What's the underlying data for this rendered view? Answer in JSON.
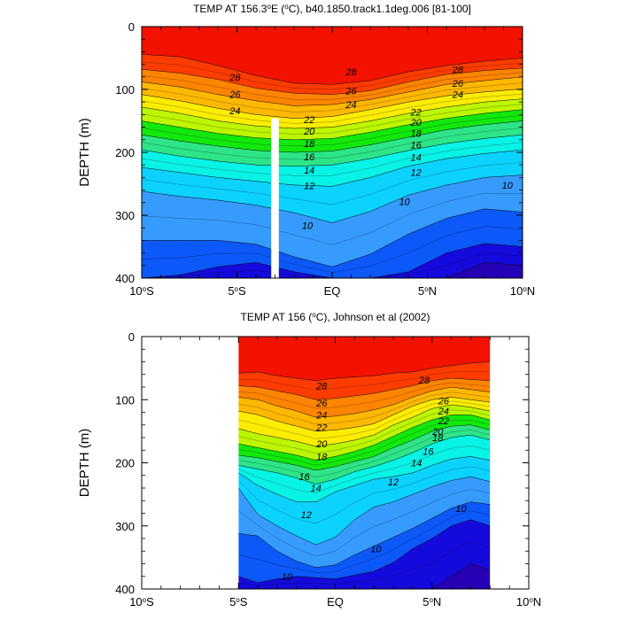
{
  "chart_data": [
    {
      "type": "contour",
      "title": "TEMP AT 156.3°E (°C), b40.1850.track1.1deg.006 [81-100]",
      "title_prefix": "TEMP AT 156.3",
      "title_sup": "o",
      "title_suffix": "E (",
      "title_sup2": "o",
      "title_end": "C), b40.1850.track1.1deg.006 [81-100]",
      "ylabel": "DEPTH (m)",
      "xlim": [
        -10,
        10
      ],
      "ylim": [
        0,
        400
      ],
      "data_extent": [
        -10,
        10
      ],
      "masked_column": [
        -3.2,
        -2.8,
        146
      ],
      "x_ticks": [
        {
          "v": -10,
          "num": "10",
          "sup": "o",
          "hem": "S"
        },
        {
          "v": -5,
          "num": "5",
          "sup": "o",
          "hem": "S"
        },
        {
          "v": 0,
          "num": "EQ",
          "sup": "",
          "hem": ""
        },
        {
          "v": 5,
          "num": "5",
          "sup": "o",
          "hem": "N"
        },
        {
          "v": 10,
          "num": "10",
          "sup": "o",
          "hem": "N"
        }
      ],
      "y_ticks": [
        0,
        100,
        200,
        300,
        400
      ],
      "x_profile": [
        -10,
        -8,
        -6,
        -4,
        -2,
        0,
        2,
        4,
        6,
        8,
        10
      ],
      "isotherms": [
        {
          "t": 29,
          "d": [
            0,
            0,
            0,
            0,
            0,
            0,
            0,
            0,
            0,
            0,
            0
          ]
        },
        {
          "t": 28,
          "d": [
            44,
            48,
            62,
            78,
            90,
            92,
            86,
            72,
            62,
            55,
            50
          ]
        },
        {
          "t": 26,
          "d": [
            68,
            74,
            84,
            98,
            106,
            108,
            102,
            88,
            76,
            70,
            66
          ]
        },
        {
          "t": 24,
          "d": [
            88,
            96,
            108,
            118,
            126,
            124,
            116,
            104,
            92,
            86,
            80
          ]
        },
        {
          "t": 22,
          "d": [
            108,
            118,
            130,
            140,
            146,
            143,
            132,
            120,
            110,
            104,
            99
          ]
        },
        {
          "t": 20,
          "d": [
            128,
            138,
            150,
            158,
            162,
            160,
            150,
            138,
            128,
            120,
            115
          ]
        },
        {
          "t": 18,
          "d": [
            150,
            160,
            170,
            177,
            180,
            178,
            168,
            156,
            146,
            138,
            132
          ]
        },
        {
          "t": 16,
          "d": [
            172,
            182,
            190,
            197,
            200,
            198,
            188,
            176,
            164,
            156,
            150
          ]
        },
        {
          "t": 14,
          "d": [
            196,
            206,
            214,
            220,
            222,
            220,
            210,
            197,
            186,
            178,
            172
          ]
        },
        {
          "t": 12,
          "d": [
            224,
            232,
            240,
            246,
            252,
            254,
            240,
            222,
            210,
            202,
            196
          ]
        },
        {
          "t": 10,
          "d": [
            262,
            270,
            276,
            284,
            296,
            312,
            294,
            268,
            252,
            240,
            236
          ]
        },
        {
          "t": 8,
          "d": [
            340,
            340,
            340,
            346,
            366,
            382,
            362,
            330,
            305,
            290,
            295
          ]
        },
        {
          "t": 6,
          "d": [
            400,
            395,
            382,
            375,
            390,
            400,
            400,
            390,
            360,
            345,
            350
          ]
        },
        {
          "t": 5,
          "d": [
            400,
            400,
            400,
            400,
            400,
            400,
            400,
            400,
            400,
            375,
            380
          ]
        }
      ],
      "contour_labels": [
        {
          "x": -5.1,
          "y": 80,
          "text": "28"
        },
        {
          "x": 1.0,
          "y": 72,
          "text": "28"
        },
        {
          "x": 6.6,
          "y": 68,
          "text": "28"
        },
        {
          "x": -5.1,
          "y": 108,
          "text": "26"
        },
        {
          "x": 1.0,
          "y": 102,
          "text": "26"
        },
        {
          "x": 6.6,
          "y": 90,
          "text": "26"
        },
        {
          "x": -5.1,
          "y": 134,
          "text": "24"
        },
        {
          "x": 1.0,
          "y": 124,
          "text": "24"
        },
        {
          "x": 6.6,
          "y": 108,
          "text": "24"
        },
        {
          "x": -1.2,
          "y": 148,
          "text": "22"
        },
        {
          "x": 4.4,
          "y": 136,
          "text": "22"
        },
        {
          "x": -1.2,
          "y": 166,
          "text": "20"
        },
        {
          "x": 4.4,
          "y": 152,
          "text": "20"
        },
        {
          "x": -1.2,
          "y": 186,
          "text": "18"
        },
        {
          "x": 4.4,
          "y": 170,
          "text": "18"
        },
        {
          "x": -1.2,
          "y": 207,
          "text": "16"
        },
        {
          "x": 4.4,
          "y": 188,
          "text": "16"
        },
        {
          "x": -1.2,
          "y": 228,
          "text": "14"
        },
        {
          "x": 4.4,
          "y": 208,
          "text": "14"
        },
        {
          "x": -1.2,
          "y": 253,
          "text": "12"
        },
        {
          "x": 4.4,
          "y": 232,
          "text": "12"
        },
        {
          "x": 3.8,
          "y": 278,
          "text": "10"
        },
        {
          "x": -1.3,
          "y": 316,
          "text": "10"
        },
        {
          "x": 9.2,
          "y": 252,
          "text": "10"
        }
      ]
    },
    {
      "type": "contour",
      "title": "TEMP AT 156 (°C), Johnson et al (2002)",
      "title_prefix": "TEMP AT 156 (",
      "title_sup": "o",
      "title_suffix": "C), Johnson et al (2002)",
      "ylabel": "DEPTH (m)",
      "xlim": [
        -10,
        10
      ],
      "ylim": [
        0,
        400
      ],
      "data_extent": [
        -5,
        8
      ],
      "x_ticks": [
        {
          "v": -10,
          "num": "10",
          "sup": "o",
          "hem": "S"
        },
        {
          "v": -5,
          "num": "5",
          "sup": "o",
          "hem": "S"
        },
        {
          "v": 0,
          "num": "EQ",
          "sup": "",
          "hem": ""
        },
        {
          "v": 5,
          "num": "5",
          "sup": "o",
          "hem": "N"
        },
        {
          "v": 10,
          "num": "10",
          "sup": "o",
          "hem": "N"
        }
      ],
      "y_ticks": [
        0,
        100,
        200,
        300,
        400
      ],
      "x_profile": [
        -5,
        -4,
        -3,
        -2,
        -1,
        0,
        1,
        2,
        3,
        4,
        5,
        6,
        7,
        8
      ],
      "isotherms": [
        {
          "t": 29,
          "d": [
            0,
            0,
            0,
            0,
            0,
            0,
            0,
            0,
            0,
            0,
            0,
            0,
            0,
            0
          ]
        },
        {
          "t": 28,
          "d": [
            58,
            56,
            62,
            66,
            70,
            66,
            64,
            62,
            58,
            56,
            50,
            46,
            42,
            40
          ]
        },
        {
          "t": 26,
          "d": [
            78,
            80,
            86,
            92,
            100,
            98,
            94,
            90,
            84,
            78,
            70,
            66,
            68,
            70
          ]
        },
        {
          "t": 24,
          "d": [
            96,
            100,
            110,
            118,
            128,
            126,
            122,
            116,
            108,
            96,
            86,
            80,
            84,
            88
          ]
        },
        {
          "t": 22,
          "d": [
            118,
            124,
            134,
            142,
            150,
            148,
            144,
            138,
            124,
            110,
            100,
            96,
            100,
            104
          ]
        },
        {
          "t": 20,
          "d": [
            146,
            154,
            160,
            166,
            174,
            170,
            164,
            156,
            140,
            128,
            114,
            108,
            112,
            118
          ]
        },
        {
          "t": 18,
          "d": [
            170,
            176,
            182,
            188,
            196,
            190,
            182,
            172,
            158,
            144,
            132,
            124,
            124,
            132
          ]
        },
        {
          "t": 16,
          "d": [
            188,
            192,
            198,
            204,
            212,
            206,
            198,
            190,
            176,
            164,
            150,
            142,
            140,
            148
          ]
        },
        {
          "t": 14,
          "d": [
            204,
            210,
            216,
            224,
            234,
            226,
            214,
            206,
            196,
            184,
            170,
            160,
            156,
            164
          ]
        },
        {
          "t": 12,
          "d": [
            216,
            236,
            250,
            262,
            262,
            246,
            236,
            226,
            222,
            216,
            204,
            194,
            190,
            196
          ]
        },
        {
          "t": 10,
          "d": [
            240,
            282,
            300,
            316,
            330,
            318,
            290,
            270,
            262,
            250,
            238,
            228,
            222,
            230
          ]
        },
        {
          "t": 8,
          "d": [
            312,
            316,
            340,
            356,
            366,
            362,
            346,
            332,
            318,
            304,
            288,
            272,
            262,
            266
          ]
        },
        {
          "t": 6,
          "d": [
            380,
            390,
            384,
            380,
            382,
            384,
            378,
            372,
            358,
            336,
            320,
            300,
            290,
            300
          ]
        },
        {
          "t": 5,
          "d": [
            400,
            400,
            400,
            400,
            400,
            400,
            400,
            400,
            400,
            400,
            400,
            380,
            360,
            370
          ]
        }
      ],
      "contour_labels": [
        {
          "x": -0.7,
          "y": 78,
          "text": "28"
        },
        {
          "x": 4.6,
          "y": 69,
          "text": "28"
        },
        {
          "x": -0.7,
          "y": 105,
          "text": "26"
        },
        {
          "x": 5.6,
          "y": 102,
          "text": "26"
        },
        {
          "x": -0.7,
          "y": 124,
          "text": "24"
        },
        {
          "x": 5.6,
          "y": 118,
          "text": "24"
        },
        {
          "x": -0.7,
          "y": 144,
          "text": "22"
        },
        {
          "x": 5.6,
          "y": 133,
          "text": "22"
        },
        {
          "x": -0.7,
          "y": 170,
          "text": "20"
        },
        {
          "x": 5.3,
          "y": 150,
          "text": "20"
        },
        {
          "x": -0.7,
          "y": 190,
          "text": "18"
        },
        {
          "x": 5.3,
          "y": 160,
          "text": "18"
        },
        {
          "x": -1.6,
          "y": 222,
          "text": "16"
        },
        {
          "x": 4.8,
          "y": 182,
          "text": "16"
        },
        {
          "x": -1.0,
          "y": 240,
          "text": "14"
        },
        {
          "x": 4.2,
          "y": 200,
          "text": "14"
        },
        {
          "x": -1.5,
          "y": 282,
          "text": "12"
        },
        {
          "x": 3.0,
          "y": 230,
          "text": "12"
        },
        {
          "x": 6.5,
          "y": 272,
          "text": "10"
        },
        {
          "x": 2.1,
          "y": 336,
          "text": "10"
        },
        {
          "x": -2.5,
          "y": 380,
          "text": "10"
        }
      ]
    }
  ]
}
